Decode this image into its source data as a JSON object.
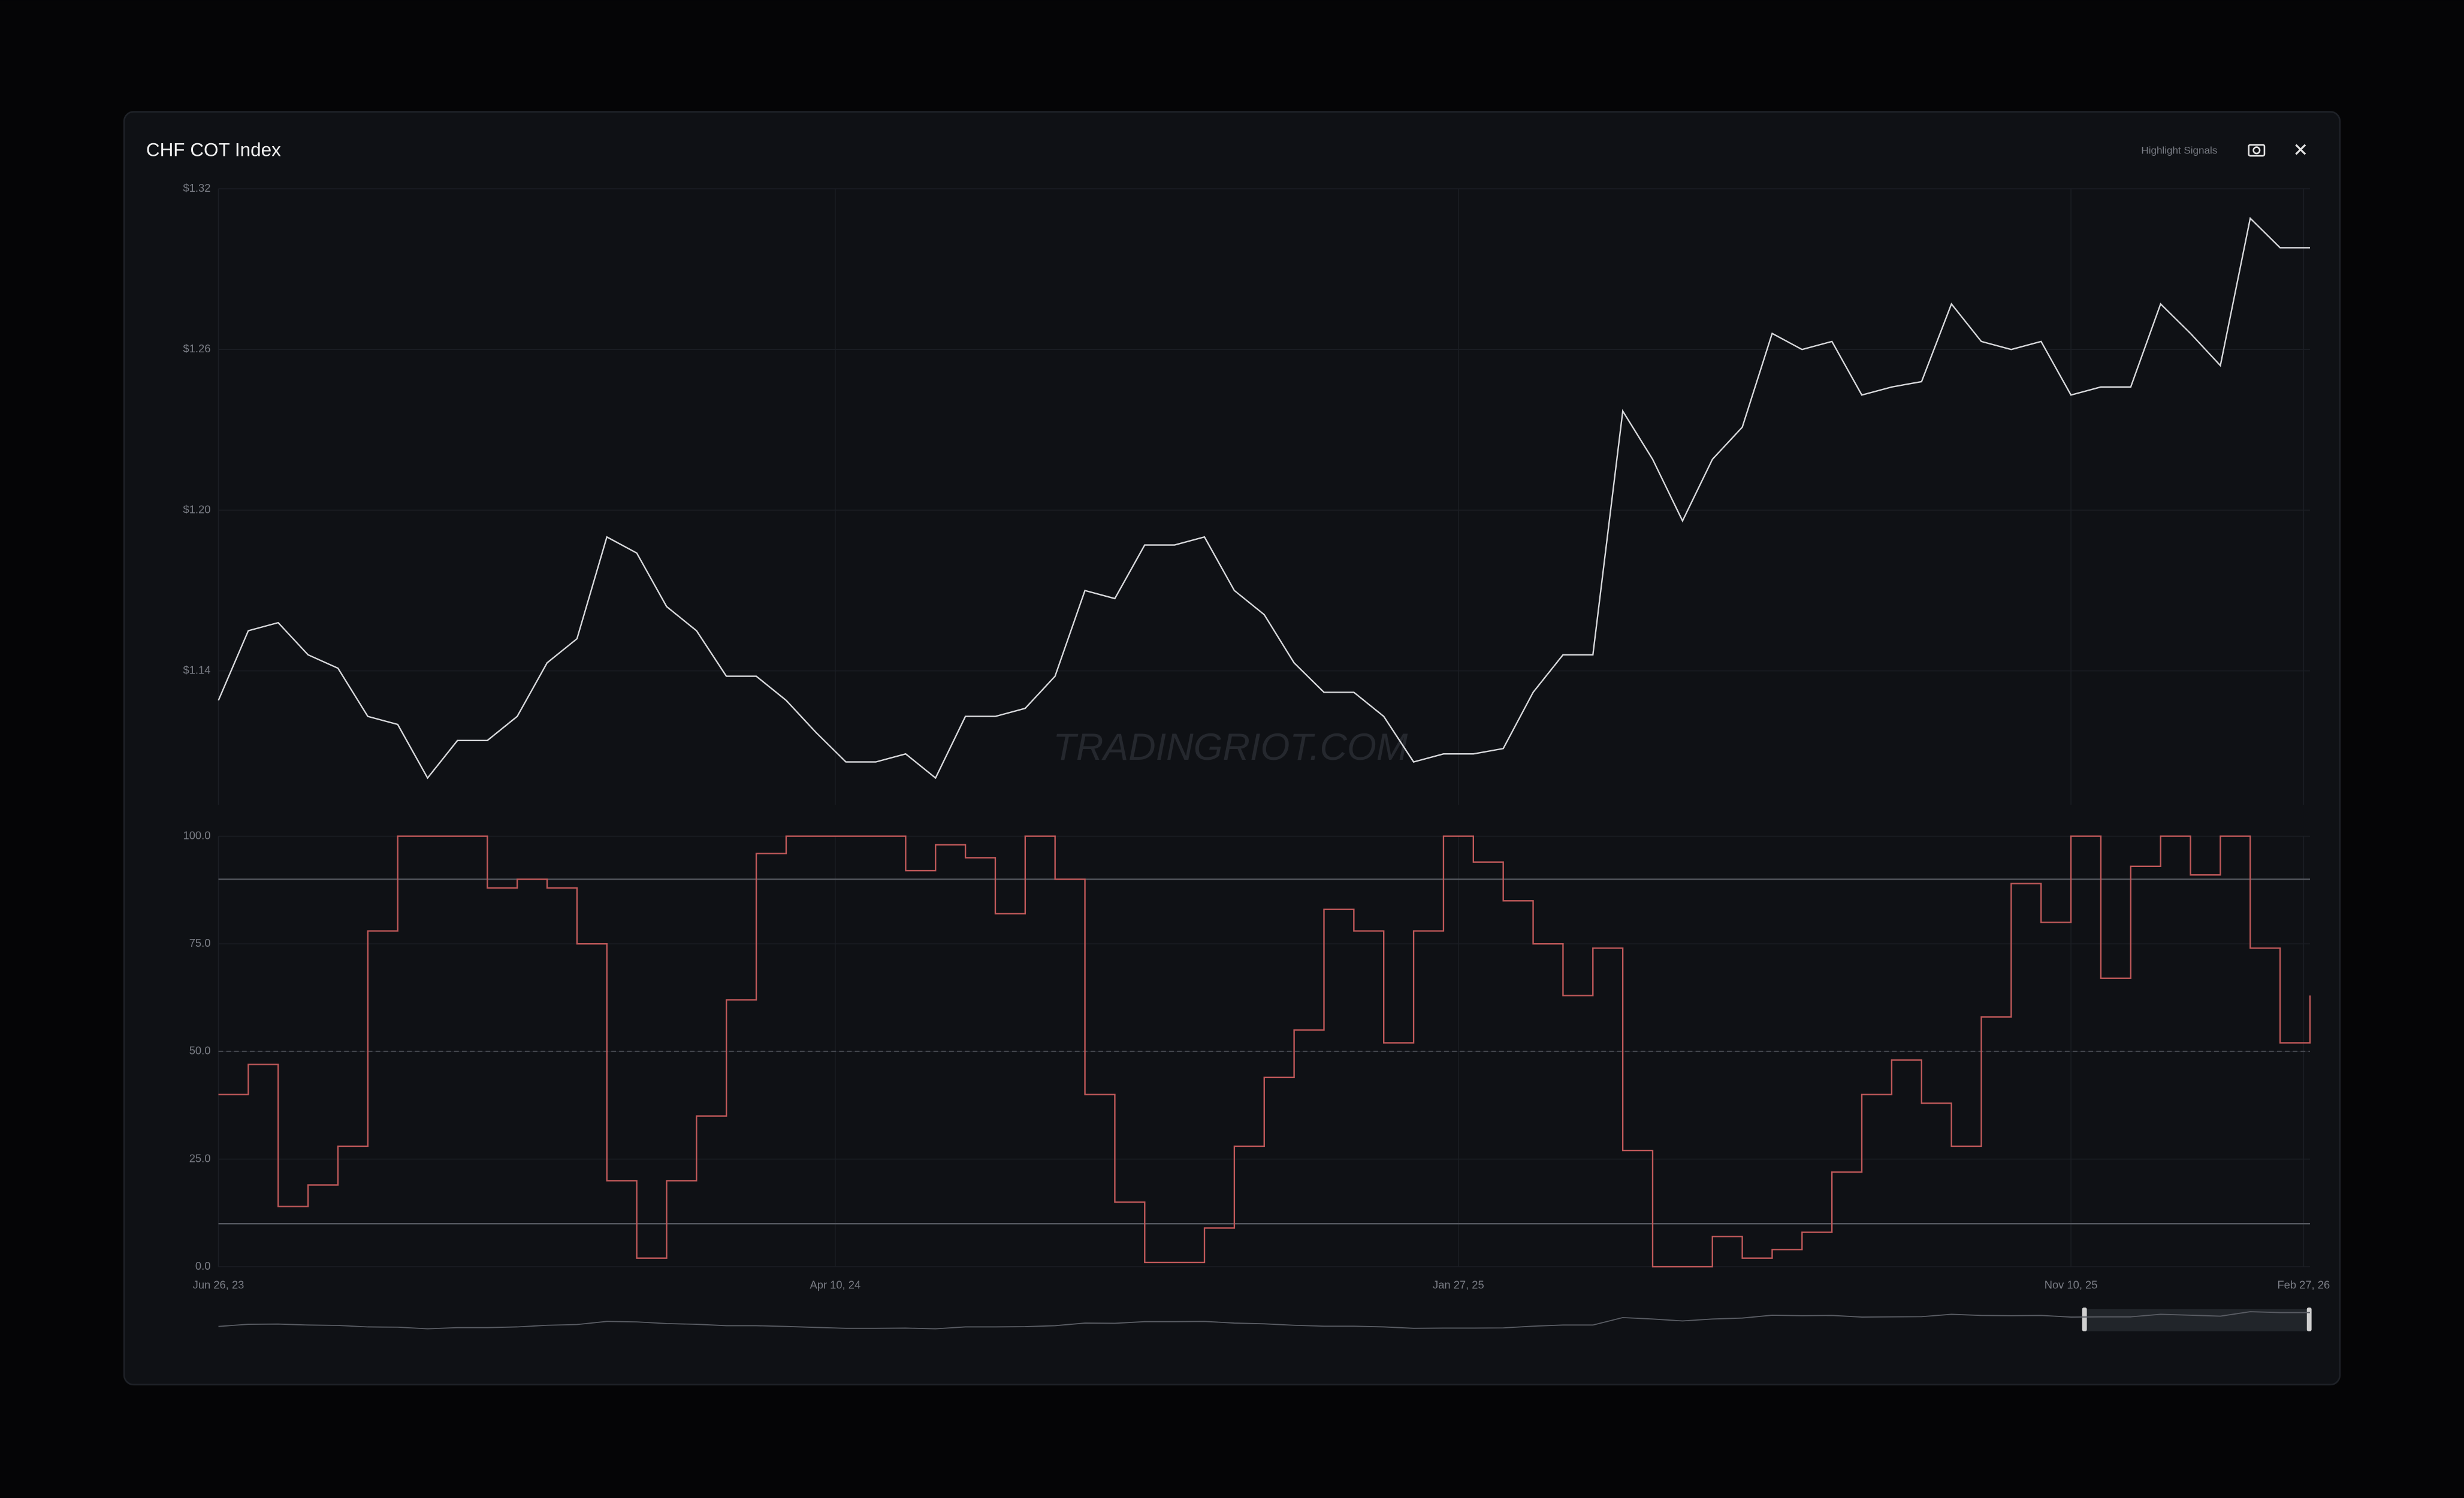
{
  "header": {
    "symbol": "CHF",
    "title": "COT Index",
    "button": "Highlight Signals",
    "watermark": "TRADINGRIOT.COM"
  },
  "chart_data": {
    "type": "line",
    "x": [
      "2023-06-26",
      "2023-07-10",
      "2023-07-24",
      "2023-08-07",
      "2023-08-21",
      "2023-09-04",
      "2023-09-18",
      "2023-10-02",
      "2023-10-16",
      "2023-10-30",
      "2023-11-13",
      "2023-11-27",
      "2023-12-11",
      "2023-12-25",
      "2024-01-08",
      "2024-01-22",
      "2024-02-05",
      "2024-02-19",
      "2024-03-04",
      "2024-03-18",
      "2024-04-01",
      "2024-04-15",
      "2024-04-29",
      "2024-05-13",
      "2024-05-27",
      "2024-06-10",
      "2024-06-24",
      "2024-07-08",
      "2024-07-22",
      "2024-08-05",
      "2024-08-19",
      "2024-09-02",
      "2024-09-16",
      "2024-09-30",
      "2024-10-14",
      "2024-10-28",
      "2024-11-11",
      "2024-11-25",
      "2024-12-09",
      "2024-12-23",
      "2025-01-06",
      "2025-01-20",
      "2025-02-03",
      "2025-02-17",
      "2025-03-03",
      "2025-03-17",
      "2025-03-31",
      "2025-04-14",
      "2025-04-28",
      "2025-05-12",
      "2025-05-26",
      "2025-06-09",
      "2025-06-23",
      "2025-07-07",
      "2025-07-21",
      "2025-08-04",
      "2025-08-18",
      "2025-09-01",
      "2025-09-15",
      "2025-09-29",
      "2025-10-13",
      "2025-10-27",
      "2025-11-10",
      "2025-11-24",
      "2025-12-08",
      "2025-12-22",
      "2026-01-05",
      "2026-01-19",
      "2026-02-02",
      "2026-02-16",
      "2026-03-02"
    ],
    "xlim": [
      "2023-06-26",
      "2026-03-02"
    ],
    "xticks": [
      {
        "value": "2023-06-26",
        "label": "Jun 26, 23"
      },
      {
        "value": "2024-04-10",
        "label": "Apr 10, 24"
      },
      {
        "value": "2025-01-27",
        "label": "Jan 27, 25"
      },
      {
        "value": "2025-11-10",
        "label": "Nov 10, 25"
      },
      {
        "value": "2026-02-27",
        "label": "Feb 27, 26"
      }
    ],
    "ylim": [
      1.09,
      1.32
    ],
    "yticks": [
      {
        "value": 1.14,
        "label": "$1.14"
      },
      {
        "value": 1.2,
        "label": "$1.20"
      },
      {
        "value": 1.26,
        "label": "$1.26"
      },
      {
        "value": 1.32,
        "label": "$1.32"
      }
    ],
    "y2lim": [
      0,
      100
    ],
    "y2ticks": [
      {
        "value": 0,
        "label": "0.0"
      },
      {
        "value": 25,
        "label": "25.0"
      },
      {
        "value": 50,
        "label": "50.0"
      },
      {
        "value": 75,
        "label": "75.0"
      },
      {
        "value": 100,
        "label": "100.0"
      }
    ],
    "thresholds": [
      10,
      90
    ],
    "midline": 50,
    "series": [
      {
        "color": "#d9dadd",
        "values": [
          1.129,
          1.155,
          1.158,
          1.146,
          1.141,
          1.123,
          1.12,
          1.1,
          1.114,
          1.114,
          1.123,
          1.143,
          1.152,
          1.19,
          1.184,
          1.164,
          1.155,
          1.138,
          1.138,
          1.129,
          1.117,
          1.106,
          1.106,
          1.109,
          1.1,
          1.123,
          1.123,
          1.126,
          1.138,
          1.17,
          1.167,
          1.187,
          1.187,
          1.19,
          1.17,
          1.161,
          1.143,
          1.132,
          1.132,
          1.123,
          1.106,
          1.109,
          1.109,
          1.111,
          1.132,
          1.146,
          1.146,
          1.237,
          1.219,
          1.196,
          1.219,
          1.231,
          1.266,
          1.26,
          1.263,
          1.243,
          1.246,
          1.248,
          1.277,
          1.263,
          1.26,
          1.263,
          1.243,
          1.246,
          1.246,
          1.277,
          1.266,
          1.254,
          1.309,
          1.298,
          1.298
        ]
      },
      {
        "color": "#c0595a",
        "axis": "y2",
        "step": true,
        "values": [
          40,
          47,
          14,
          19,
          28,
          78,
          100,
          100,
          100,
          88,
          90,
          88,
          75,
          20,
          2,
          20,
          35,
          62,
          96,
          100,
          100,
          100,
          100,
          92,
          98,
          95,
          82,
          100,
          90,
          40,
          15,
          1,
          1,
          9,
          28,
          44,
          55,
          83,
          78,
          52,
          78,
          100,
          94,
          85,
          75,
          63,
          74,
          27,
          0,
          0,
          7,
          2,
          4,
          8,
          22,
          40,
          48,
          38,
          28,
          58,
          89,
          80,
          100,
          67,
          93,
          100,
          91,
          100,
          74,
          52,
          63
        ]
      }
    ],
    "grid": true
  }
}
